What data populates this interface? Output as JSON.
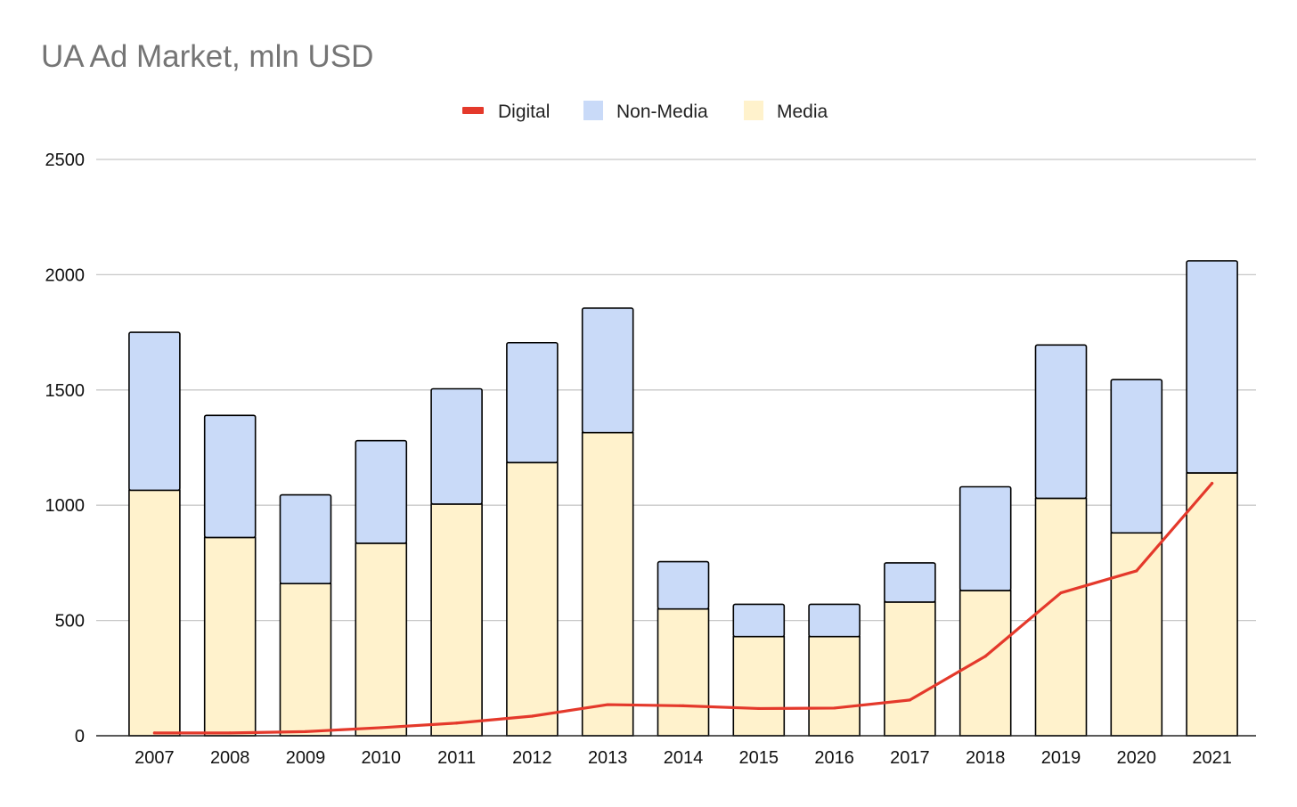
{
  "chart_data": {
    "type": "bar",
    "stacked": true,
    "title": "UA Ad Market, mln USD",
    "xlabel": "",
    "ylabel": "",
    "ylim": [
      0,
      2500
    ],
    "yticks": [
      0,
      500,
      1000,
      1500,
      2000,
      2500
    ],
    "grid": true,
    "legend_position": "top-center",
    "categories": [
      "2007",
      "2008",
      "2009",
      "2010",
      "2011",
      "2012",
      "2013",
      "2014",
      "2015",
      "2016",
      "2017",
      "2018",
      "2019",
      "2020",
      "2021"
    ],
    "series": [
      {
        "name": "Digital",
        "kind": "line",
        "color": "#e4392b",
        "values": [
          12,
          12,
          18,
          35,
          55,
          85,
          135,
          130,
          118,
          120,
          155,
          345,
          620,
          715,
          1095
        ]
      },
      {
        "name": "Non-Media",
        "kind": "bar",
        "color": "#c9daf8",
        "values": [
          685,
          530,
          385,
          445,
          500,
          520,
          540,
          205,
          140,
          140,
          170,
          450,
          665,
          665,
          920
        ]
      },
      {
        "name": "Media",
        "kind": "bar",
        "color": "#fff2cc",
        "values": [
          1065,
          860,
          660,
          835,
          1005,
          1185,
          1315,
          550,
          430,
          430,
          580,
          630,
          1030,
          880,
          1140
        ]
      }
    ]
  }
}
